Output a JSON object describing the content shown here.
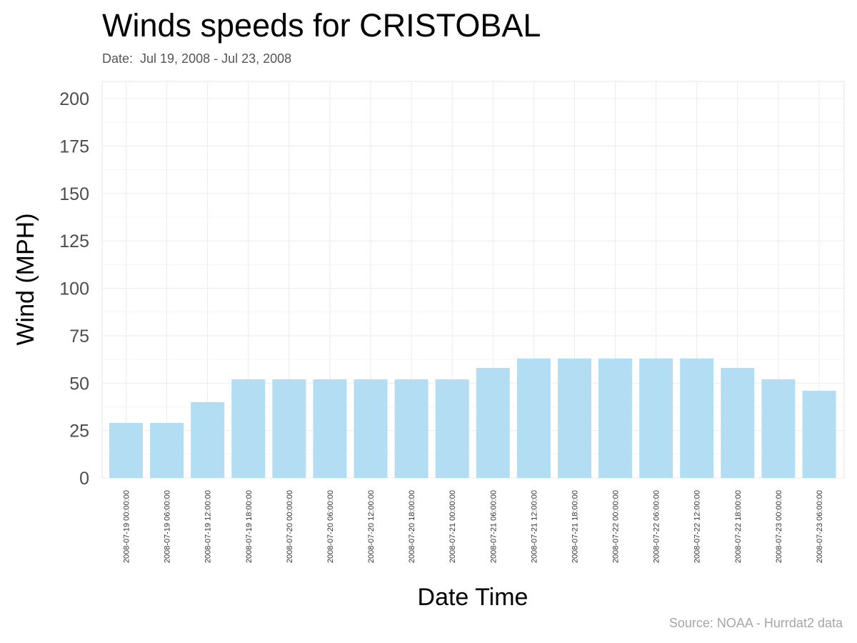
{
  "title": "Winds speeds for CRISTOBAL",
  "subtitle": "Date:  Jul 19, 2008 - Jul 23, 2008",
  "caption": "Source: NOAA - Hurrdat2 data",
  "colors": {
    "bar": "#b3ddf2",
    "grid": "#ececec",
    "panel_border": "#e6e6e6"
  },
  "chart_data": {
    "type": "bar",
    "title": "Winds speeds for CRISTOBAL",
    "subtitle": "Date:  Jul 19, 2008 - Jul 23, 2008",
    "xlabel": "Date Time",
    "ylabel": "Wind (MPH)",
    "ylim": [
      0,
      200
    ],
    "yticks": [
      0,
      25,
      50,
      75,
      100,
      125,
      150,
      175,
      200
    ],
    "grid": true,
    "legend": "none",
    "categories": [
      "2008-07-19 00:00:00",
      "2008-07-19 06:00:00",
      "2008-07-19 12:00:00",
      "2008-07-19 18:00:00",
      "2008-07-20 00:00:00",
      "2008-07-20 06:00:00",
      "2008-07-20 12:00:00",
      "2008-07-20 18:00:00",
      "2008-07-21 00:00:00",
      "2008-07-21 06:00:00",
      "2008-07-21 12:00:00",
      "2008-07-21 18:00:00",
      "2008-07-22 00:00:00",
      "2008-07-22 06:00:00",
      "2008-07-22 12:00:00",
      "2008-07-22 18:00:00",
      "2008-07-23 00:00:00",
      "2008-07-23 06:00:00"
    ],
    "values": [
      29,
      29,
      40,
      52,
      52,
      52,
      52,
      52,
      52,
      58,
      63,
      63,
      63,
      63,
      63,
      58,
      52,
      46
    ]
  }
}
